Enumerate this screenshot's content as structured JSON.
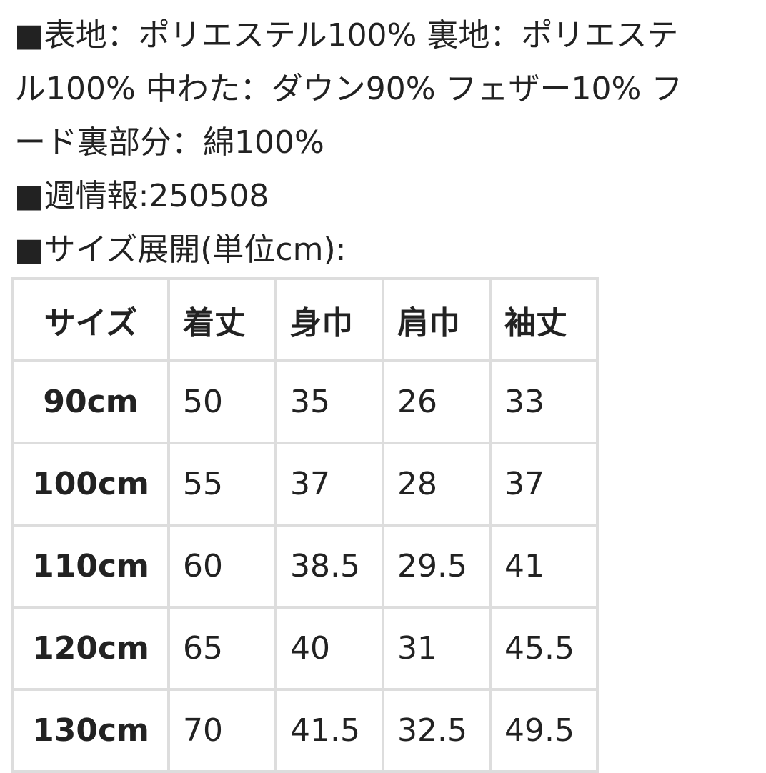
{
  "text_lines": [
    "■表地：ポリエステル100% 裏地：ポリエステ",
    "ル100% 中わた：ダウン90% フェザー10% フ",
    "ード裏部分：綿100%",
    "■週情報:250508",
    "■サイズ展開(単位cm):"
  ],
  "table": {
    "header": [
      "サイズ",
      "着丈",
      "身巾",
      "肩巾",
      "袖丈"
    ],
    "rows": [
      [
        "90cm",
        "50",
        "35",
        "26",
        "33"
      ],
      [
        "100cm",
        "55",
        "37",
        "28",
        "37"
      ],
      [
        "110cm",
        "60",
        "38.5",
        "29.5",
        "41"
      ],
      [
        "120cm",
        "65",
        "40",
        "31",
        "45.5"
      ],
      [
        "130cm",
        "70",
        "41.5",
        "32.5",
        "49.5"
      ]
    ]
  }
}
